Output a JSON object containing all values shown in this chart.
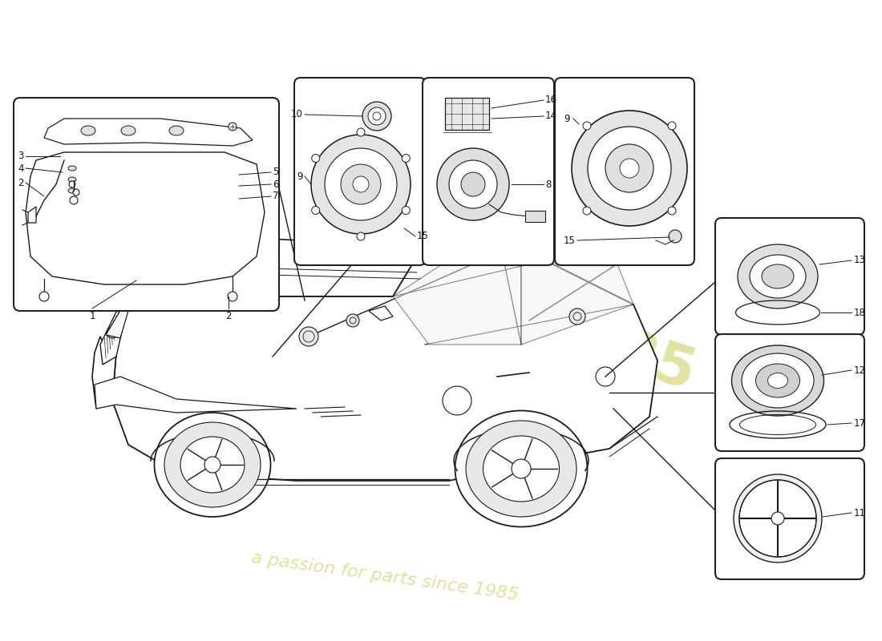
{
  "bg_color": "#ffffff",
  "line_color": "#1a1a1a",
  "text_color": "#111111",
  "watermark_color": "#dede90",
  "label_fontsize": 8.5,
  "watermark_fontsize_main": 72,
  "watermark_fontsize_year": 52,
  "watermark_fontsize_sub": 16
}
